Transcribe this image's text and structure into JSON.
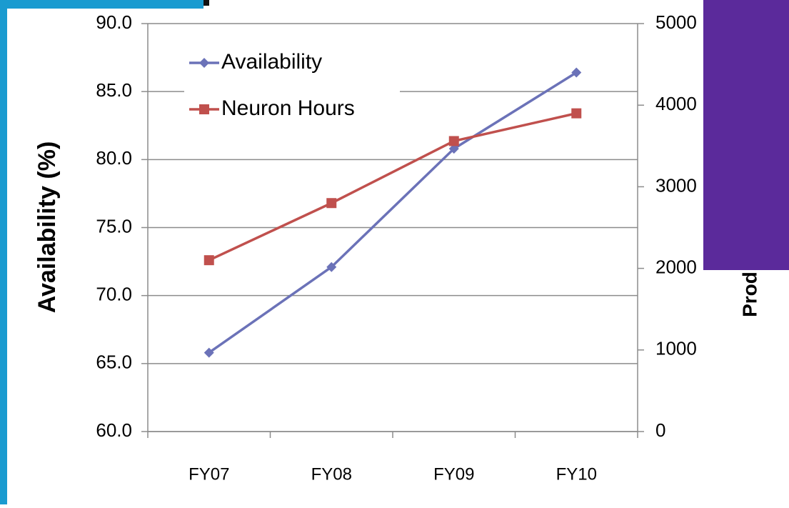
{
  "chart_data": {
    "type": "line",
    "categories": [
      "FY07",
      "FY08",
      "FY09",
      "FY10"
    ],
    "series": [
      {
        "name": "Availability",
        "color": "#6b72b8",
        "marker": "diamond",
        "values": [
          65.8,
          72.1,
          80.8,
          86.4
        ]
      },
      {
        "name": "Neuron Hours",
        "color": "#c0504d",
        "marker": "square",
        "axis": "y2",
        "values": [
          2100,
          2800,
          3560,
          3900
        ]
      }
    ],
    "ylabel": "Availability (%)",
    "y2label": "Prod",
    "ylim": [
      60,
      90
    ],
    "yticks": [
      {
        "value": 60,
        "label": "60.0"
      },
      {
        "value": 65,
        "label": "65.0"
      },
      {
        "value": 70,
        "label": "70.0"
      },
      {
        "value": 75,
        "label": "75.0"
      },
      {
        "value": 80,
        "label": "80.0"
      },
      {
        "value": 85,
        "label": "85.0"
      },
      {
        "value": 90,
        "label": "90.0"
      }
    ],
    "y2lim": [
      0,
      5000
    ],
    "y2ticks": [
      0,
      1000,
      2000,
      3000,
      4000,
      5000
    ],
    "grid": true,
    "legend": "upper left"
  }
}
